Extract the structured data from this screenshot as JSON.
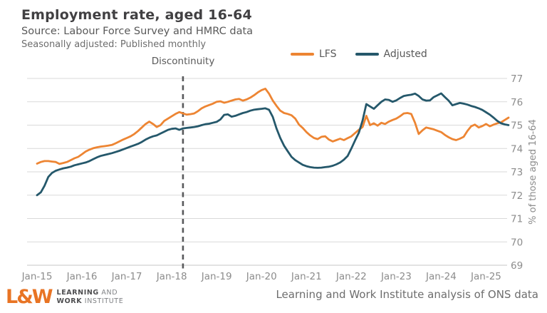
{
  "header": {
    "title": "Employment rate, aged 16-64",
    "subtitle": "Source: Labour Force Survey and HMRC data",
    "subtitle2": "Seasonally adjusted: Published monthly"
  },
  "annotation": {
    "label": "Discontinuity"
  },
  "legend": [
    {
      "label": "LFS",
      "color": "#ED8533"
    },
    {
      "label": "Adjusted",
      "color": "#25586B"
    }
  ],
  "footer": {
    "logo_mark": "L&W",
    "logo_line1_bold": "LEARNING",
    "logo_line1_rest": " AND",
    "logo_line2_bold": "WORK",
    "logo_line2_rest": " INSTITUTE",
    "credit": "Learning and Work Institute analysis of ONS data"
  },
  "chart_data": {
    "type": "line",
    "title": "Employment rate, aged 16-64",
    "ylabel": "% of those aged 16-64",
    "ylim": [
      69,
      77
    ],
    "y_ticks": [
      77,
      76,
      75,
      74,
      73,
      72,
      71,
      70,
      69
    ],
    "x_ticks": [
      "Jan-15",
      "Jan-16",
      "Jan-17",
      "Jan-18",
      "Jan-19",
      "Jan-20",
      "Jan-21",
      "Jan-22",
      "Jan-23",
      "Jan-24",
      "Jan-25"
    ],
    "x_frequency": "monthly",
    "x_range": "Jan-2015 to Jul-2025",
    "grid": "horizontal",
    "legend_position": "top",
    "discontinuity_index": 39,
    "discontinuity_label": "Discontinuity",
    "series": [
      {
        "name": "LFS",
        "color": "#ED8533",
        "values": [
          73.35,
          73.42,
          73.46,
          73.46,
          73.44,
          73.42,
          73.34,
          73.38,
          73.42,
          73.5,
          73.58,
          73.64,
          73.75,
          73.87,
          73.95,
          74.01,
          74.05,
          74.08,
          74.1,
          74.12,
          74.15,
          74.22,
          74.3,
          74.38,
          74.45,
          74.52,
          74.62,
          74.75,
          74.9,
          75.05,
          75.15,
          75.05,
          74.92,
          75.0,
          75.18,
          75.28,
          75.38,
          75.48,
          75.56,
          75.5,
          75.45,
          75.47,
          75.5,
          75.6,
          75.72,
          75.8,
          75.86,
          75.92,
          76.0,
          76.02,
          75.96,
          76.0,
          76.05,
          76.1,
          76.12,
          76.05,
          76.1,
          76.18,
          76.28,
          76.4,
          76.5,
          76.56,
          76.35,
          76.05,
          75.82,
          75.62,
          75.52,
          75.48,
          75.42,
          75.28,
          75.02,
          74.88,
          74.7,
          74.56,
          74.45,
          74.4,
          74.5,
          74.52,
          74.38,
          74.3,
          74.36,
          74.42,
          74.36,
          74.44,
          74.52,
          74.66,
          74.8,
          74.92,
          75.4,
          75.0,
          75.08,
          74.98,
          75.1,
          75.05,
          75.15,
          75.22,
          75.28,
          75.38,
          75.5,
          75.52,
          75.48,
          75.1,
          74.62,
          74.78,
          74.9,
          74.86,
          74.82,
          74.76,
          74.7,
          74.58,
          74.48,
          74.4,
          74.36,
          74.42,
          74.5,
          74.75,
          74.95,
          75.02,
          74.9,
          74.96,
          75.05,
          74.95,
          75.02,
          75.08,
          75.12,
          75.22,
          75.32
        ]
      },
      {
        "name": "Adjusted",
        "color": "#25586B",
        "values": [
          72.0,
          72.12,
          72.4,
          72.78,
          72.95,
          73.05,
          73.1,
          73.15,
          73.18,
          73.22,
          73.28,
          73.32,
          73.36,
          73.4,
          73.46,
          73.54,
          73.62,
          73.68,
          73.72,
          73.76,
          73.8,
          73.85,
          73.9,
          73.96,
          74.02,
          74.08,
          74.14,
          74.2,
          74.28,
          74.38,
          74.46,
          74.52,
          74.56,
          74.64,
          74.72,
          74.8,
          74.84,
          74.86,
          74.8,
          74.86,
          74.88,
          74.9,
          74.92,
          74.95,
          75.0,
          75.04,
          75.06,
          75.1,
          75.14,
          75.24,
          75.44,
          75.46,
          75.36,
          75.4,
          75.46,
          75.52,
          75.56,
          75.62,
          75.66,
          75.68,
          75.7,
          75.72,
          75.66,
          75.35,
          74.85,
          74.45,
          74.12,
          73.88,
          73.64,
          73.5,
          73.4,
          73.3,
          73.24,
          73.2,
          73.18,
          73.17,
          73.18,
          73.2,
          73.22,
          73.26,
          73.32,
          73.4,
          73.52,
          73.68,
          74.0,
          74.35,
          74.67,
          75.2,
          75.9,
          75.8,
          75.7,
          75.85,
          76.0,
          76.1,
          76.08,
          76.0,
          76.06,
          76.16,
          76.25,
          76.28,
          76.3,
          76.35,
          76.25,
          76.1,
          76.05,
          76.06,
          76.2,
          76.28,
          76.36,
          76.2,
          76.05,
          75.85,
          75.9,
          75.95,
          75.92,
          75.88,
          75.82,
          75.78,
          75.72,
          75.65,
          75.55,
          75.45,
          75.32,
          75.18,
          75.08,
          75.03,
          75.0
        ]
      }
    ]
  }
}
